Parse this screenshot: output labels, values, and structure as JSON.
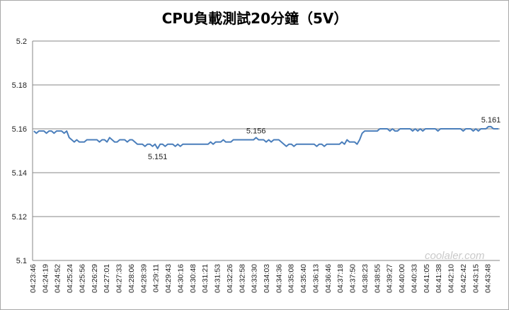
{
  "chart_data": {
    "type": "line",
    "title": "CPU負載測試20分鐘（5V）",
    "ylim": [
      5.1,
      5.2
    ],
    "yticks": [
      "5.1",
      "5.12",
      "5.14",
      "5.16",
      "5.18",
      "5.2"
    ],
    "grid": "horizontal",
    "legend": "none",
    "x_tick_labels": [
      "04:23:46",
      "04:24:19",
      "04:24:52",
      "04:25:24",
      "04:25:56",
      "04:26:29",
      "04:27:01",
      "04:27:33",
      "04:28:06",
      "04:28:39",
      "04:29:11",
      "04:29:43",
      "04:30:16",
      "04:30:48",
      "04:31:21",
      "04:31:53",
      "04:32:26",
      "04:32:58",
      "04:33:30",
      "04:34:03",
      "04:34:36",
      "04:35:08",
      "04:35:40",
      "04:36:13",
      "04:36:46",
      "04:37:18",
      "04:37:50",
      "04:38:23",
      "04:38:55",
      "04:39:27",
      "04:40:00",
      "04:40:33",
      "04:41:05",
      "04:41:38",
      "04:42:10",
      "04:42:42",
      "04:43:15",
      "04:43:48"
    ],
    "series": [
      {
        "color": "#4a7ebb",
        "values": [
          5.159,
          5.158,
          5.159,
          5.159,
          5.159,
          5.158,
          5.159,
          5.159,
          5.158,
          5.159,
          5.159,
          5.159,
          5.158,
          5.159,
          5.156,
          5.155,
          5.154,
          5.155,
          5.154,
          5.154,
          5.154,
          5.155,
          5.155,
          5.155,
          5.155,
          5.155,
          5.154,
          5.155,
          5.155,
          5.154,
          5.156,
          5.155,
          5.154,
          5.154,
          5.155,
          5.155,
          5.155,
          5.154,
          5.155,
          5.155,
          5.154,
          5.153,
          5.153,
          5.153,
          5.152,
          5.153,
          5.153,
          5.152,
          5.153,
          5.151,
          5.153,
          5.153,
          5.152,
          5.153,
          5.153,
          5.153,
          5.152,
          5.153,
          5.152,
          5.153,
          5.153,
          5.153,
          5.153,
          5.153,
          5.153,
          5.153,
          5.153,
          5.153,
          5.153,
          5.153,
          5.154,
          5.153,
          5.154,
          5.154,
          5.154,
          5.155,
          5.154,
          5.154,
          5.154,
          5.155,
          5.155,
          5.155,
          5.155,
          5.155,
          5.155,
          5.155,
          5.155,
          5.155,
          5.156,
          5.155,
          5.155,
          5.155,
          5.154,
          5.155,
          5.154,
          5.155,
          5.155,
          5.155,
          5.154,
          5.153,
          5.152,
          5.153,
          5.153,
          5.152,
          5.153,
          5.153,
          5.153,
          5.153,
          5.153,
          5.153,
          5.153,
          5.153,
          5.152,
          5.153,
          5.153,
          5.152,
          5.153,
          5.153,
          5.153,
          5.153,
          5.153,
          5.153,
          5.154,
          5.153,
          5.155,
          5.154,
          5.154,
          5.154,
          5.153,
          5.155,
          5.158,
          5.159,
          5.159,
          5.159,
          5.159,
          5.159,
          5.159,
          5.16,
          5.16,
          5.16,
          5.16,
          5.159,
          5.16,
          5.159,
          5.159,
          5.16,
          5.16,
          5.16,
          5.16,
          5.16,
          5.159,
          5.16,
          5.159,
          5.16,
          5.159,
          5.16,
          5.16,
          5.16,
          5.16,
          5.16,
          5.159,
          5.16,
          5.16,
          5.16,
          5.16,
          5.16,
          5.16,
          5.16,
          5.16,
          5.16,
          5.159,
          5.16,
          5.16,
          5.16,
          5.159,
          5.16,
          5.159,
          5.16,
          5.16,
          5.16,
          5.161,
          5.161,
          5.16,
          5.16,
          5.16
        ]
      }
    ],
    "annotations": [
      {
        "text": "5.151",
        "index": 49,
        "value": 5.151,
        "position": "below"
      },
      {
        "text": "5.156",
        "index": 88,
        "value": 5.156,
        "position": "above"
      },
      {
        "text": "5.161",
        "index": 181,
        "value": 5.161,
        "position": "above"
      }
    ]
  },
  "watermark": "coolaler.com"
}
